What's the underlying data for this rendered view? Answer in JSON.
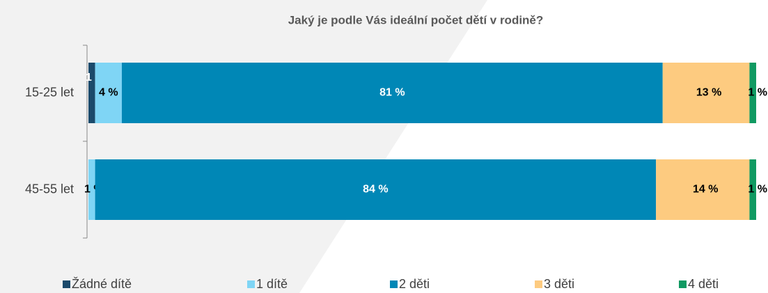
{
  "chart_data": {
    "type": "stacked-barh",
    "title": "Jaký je podle Vás ideální počet dětí v rodině?",
    "categories": [
      "15-25 let",
      "45-55 let"
    ],
    "series": [
      {
        "name": "Žádné dítě",
        "color": "#1b4a6b",
        "values": [
          1,
          0
        ],
        "value_labels": [
          "1 %",
          null
        ]
      },
      {
        "name": "1 dítě",
        "color": "#7fd5f5",
        "values": [
          4,
          1
        ],
        "value_labels": [
          "4 %",
          "1 %"
        ]
      },
      {
        "name": "2 děti",
        "color": "#0087b6",
        "values": [
          81,
          84
        ],
        "value_labels": [
          "81 %",
          "84 %"
        ]
      },
      {
        "name": "3 děti",
        "color": "#fdcb80",
        "values": [
          13,
          14
        ],
        "value_labels": [
          "13 %",
          "14 %"
        ]
      },
      {
        "name": "4 děti",
        "color": "#109a62",
        "values": [
          1,
          1
        ],
        "value_labels": [
          "1 %",
          "1 %"
        ]
      }
    ]
  }
}
